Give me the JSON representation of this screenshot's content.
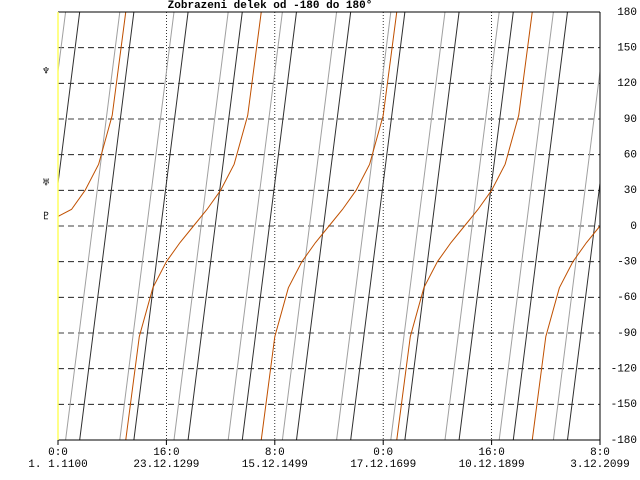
{
  "chart_data": {
    "type": "line",
    "title": "Zobrazeni delek od -180 do 180°",
    "xlim": [
      1100,
      2100
    ],
    "ylim": [
      -180,
      180
    ],
    "xticks": [
      {
        "value": 1100,
        "label": "1. 1.1100",
        "time": "0:0"
      },
      {
        "value": 1300,
        "label": "23.12.1299",
        "time": "16:0"
      },
      {
        "value": 1500,
        "label": "15.12.1499",
        "time": "8:0"
      },
      {
        "value": 1700,
        "label": "17.12.1699",
        "time": "0:0"
      },
      {
        "value": 1900,
        "label": "10.12.1899",
        "time": "16:0"
      },
      {
        "value": 2100,
        "label": "3.12.2099",
        "time": "8:0"
      }
    ],
    "yticks": [
      180,
      150,
      120,
      90,
      60,
      30,
      0,
      -30,
      -60,
      -90,
      -120,
      -150,
      -180
    ],
    "grid": true,
    "series": [
      {
        "name": "♆",
        "color": "#a0a0a0",
        "x": [
          1100,
          1114,
          1114,
          1114,
          1214,
          1214,
          1214,
          1314,
          1314,
          1314,
          1414,
          1414,
          1414,
          1514,
          1514,
          1514,
          1614,
          1614,
          1614,
          1714,
          1714,
          1714,
          1814,
          1814,
          1814,
          1914,
          1914,
          1914,
          2014,
          2014,
          2014,
          2100
        ],
        "values": [
          130,
          180,
          null,
          -180,
          180,
          null,
          -180,
          180,
          null,
          -180,
          180,
          null,
          -180,
          180,
          null,
          -180,
          180,
          null,
          -180,
          180,
          null,
          -180,
          180,
          null,
          -180,
          180,
          null,
          -180,
          180,
          null,
          -180,
          130
        ]
      },
      {
        "name": "♅",
        "color": "#303030",
        "x": [
          1100,
          1140,
          1140,
          1140,
          1240,
          1240,
          1240,
          1340,
          1340,
          1340,
          1440,
          1440,
          1440,
          1540,
          1540,
          1540,
          1640,
          1640,
          1640,
          1740,
          1740,
          1740,
          1840,
          1840,
          1840,
          1940,
          1940,
          1940,
          2040,
          2040,
          2040,
          2100
        ],
        "values": [
          36,
          180,
          null,
          -180,
          180,
          null,
          -180,
          180,
          null,
          -180,
          180,
          null,
          -180,
          180,
          null,
          -180,
          180,
          null,
          -180,
          180,
          null,
          -180,
          180,
          null,
          -180,
          180,
          null,
          -180,
          180,
          null,
          -180,
          36
        ]
      },
      {
        "name": "♇",
        "color": "#c05000",
        "x": [
          1100,
          1125,
          1150,
          1175,
          1200,
          1225,
          1225,
          1225,
          1250,
          1275,
          1300,
          1325,
          1350,
          1375,
          1400,
          1425,
          1450,
          1475,
          1475,
          1475,
          1500,
          1525,
          1550,
          1575,
          1600,
          1625,
          1650,
          1675,
          1700,
          1725,
          1725,
          1725,
          1750,
          1775,
          1800,
          1825,
          1850,
          1875,
          1900,
          1925,
          1950,
          1975,
          1975,
          1975,
          2000,
          2025,
          2050,
          2075,
          2100
        ],
        "values": [
          8,
          14,
          30,
          52,
          93,
          180,
          null,
          -180,
          -93,
          -52,
          -30,
          -14,
          0,
          14,
          30,
          52,
          93,
          180,
          null,
          -180,
          -93,
          -52,
          -30,
          -14,
          0,
          14,
          30,
          52,
          93,
          180,
          null,
          -180,
          -93,
          -52,
          -30,
          -14,
          0,
          14,
          30,
          52,
          93,
          180,
          null,
          -180,
          -93,
          -52,
          -30,
          -14,
          0
        ]
      }
    ]
  }
}
